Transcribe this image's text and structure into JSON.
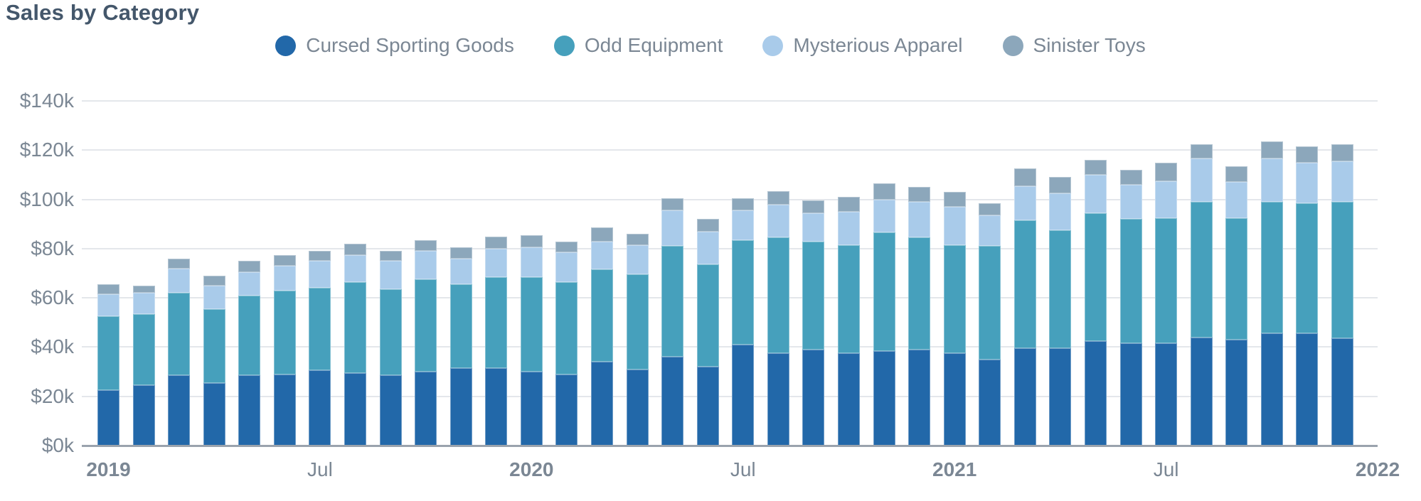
{
  "chart_data": {
    "type": "bar",
    "stacked": true,
    "title": "Sales by Category",
    "ylabel": "",
    "xlabel": "",
    "ylim_k": [
      0,
      140
    ],
    "grid": "horizontal",
    "legend_position": "top-center",
    "y_ticks": [
      {
        "value_k": 0,
        "label": "$0k"
      },
      {
        "value_k": 20,
        "label": "$20k"
      },
      {
        "value_k": 40,
        "label": "$40k"
      },
      {
        "value_k": 60,
        "label": "$60k"
      },
      {
        "value_k": 80,
        "label": "$80k"
      },
      {
        "value_k": 100,
        "label": "$100k"
      },
      {
        "value_k": 120,
        "label": "$120k"
      },
      {
        "value_k": 140,
        "label": "$140k"
      }
    ],
    "x_ticks": [
      {
        "bar_index": 0,
        "label": "2019",
        "bold": true
      },
      {
        "bar_index": 6,
        "label": "Jul",
        "bold": false
      },
      {
        "bar_index": 12,
        "label": "2020",
        "bold": true
      },
      {
        "bar_index": 18,
        "label": "Jul",
        "bold": false
      },
      {
        "bar_index": 24,
        "label": "2021",
        "bold": true
      },
      {
        "bar_index": 30,
        "label": "Jul",
        "bold": false
      },
      {
        "bar_index": 36,
        "label": "2022",
        "bold": true
      }
    ],
    "categories": [
      "Jan 2019",
      "Feb 2019",
      "Mar 2019",
      "Apr 2019",
      "May 2019",
      "Jun 2019",
      "Jul 2019",
      "Aug 2019",
      "Sep 2019",
      "Oct 2019",
      "Nov 2019",
      "Dec 2019",
      "Jan 2020",
      "Feb 2020",
      "Mar 2020",
      "Apr 2020",
      "May 2020",
      "Jun 2020",
      "Jul 2020",
      "Aug 2020",
      "Sep 2020",
      "Oct 2020",
      "Nov 2020",
      "Dec 2020",
      "Jan 2021",
      "Feb 2021",
      "Mar 2021",
      "Apr 2021",
      "May 2021",
      "Jun 2021",
      "Jul 2021",
      "Aug 2021",
      "Sep 2021",
      "Oct 2021",
      "Nov 2021",
      "Dec 2021"
    ],
    "series": [
      {
        "name": "Cursed Sporting Goods",
        "color": "#2268A9",
        "values_k": [
          22.5,
          24.5,
          28.5,
          25.5,
          28.5,
          29,
          30.5,
          29.5,
          28.5,
          30,
          31.5,
          31.5,
          30,
          29,
          34,
          31,
          36,
          32,
          41,
          37.5,
          39,
          37.5,
          38.5,
          39,
          37.5,
          35,
          39.5,
          39.5,
          42.5,
          41.5,
          41.5,
          44,
          43,
          45.5,
          45.5,
          43.5
        ]
      },
      {
        "name": "Odd Equipment",
        "color": "#46A0BC",
        "values_k": [
          30,
          29,
          33.5,
          30,
          32.5,
          34,
          33.5,
          37,
          35,
          37.5,
          34,
          37,
          38.5,
          37.5,
          37.5,
          38.5,
          45,
          41.5,
          42.5,
          47,
          44,
          44,
          48,
          45.5,
          44,
          46,
          52,
          48,
          52,
          50.5,
          51,
          55,
          49.5,
          53.5,
          53,
          55.5
        ]
      },
      {
        "name": "Mysterious Apparel",
        "color": "#A9CBEA",
        "values_k": [
          9,
          8.5,
          10,
          9.5,
          9.5,
          10,
          11,
          11,
          11.5,
          11.5,
          10.5,
          11.5,
          12,
          12,
          11.5,
          12,
          14.5,
          13.5,
          12,
          13.5,
          11.5,
          13.5,
          13.5,
          14.5,
          15.5,
          12.5,
          14,
          15,
          15.5,
          14,
          15,
          17.5,
          14.5,
          17.5,
          16.5,
          16.5
        ]
      },
      {
        "name": "Sinister Toys",
        "color": "#8CA7BB",
        "values_k": [
          4,
          3,
          4,
          4,
          4.5,
          4.5,
          4,
          4.5,
          4,
          4.5,
          4.5,
          5,
          5,
          4.5,
          5.5,
          4.5,
          5,
          5,
          5,
          5.5,
          5,
          6,
          6.5,
          6,
          6,
          5,
          7,
          6.5,
          6,
          6,
          7.5,
          6,
          6.5,
          7,
          6.5,
          7
        ]
      }
    ]
  }
}
